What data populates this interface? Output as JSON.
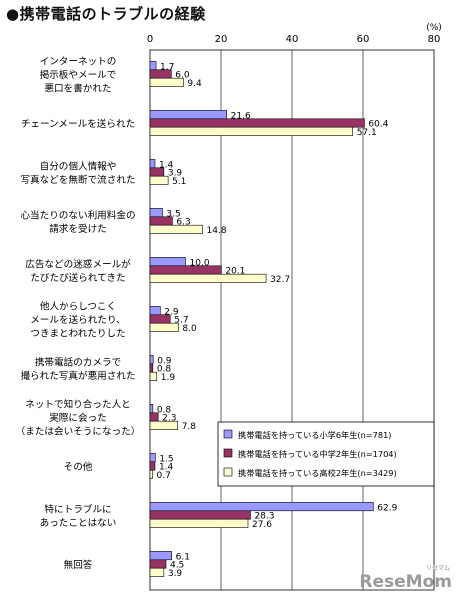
{
  "title": "●携帯電話のトラブルの経験",
  "watermark": "ReseMom",
  "watermark_sub": "リセマム",
  "chart_data": {
    "type": "bar",
    "orientation": "horizontal",
    "title": "携帯電話のトラブルの経験",
    "unit_label": "(%)",
    "xlim": [
      0,
      80
    ],
    "ticks": [
      0,
      20,
      40,
      60,
      80
    ],
    "grid": true,
    "legend_position": "right-middle",
    "categories": [
      [
        "インターネットの",
        "掲示板やメールで",
        "悪口を書かれた"
      ],
      [
        "チェーンメールを送られた"
      ],
      [
        "自分の個人情報や",
        "写真などを無断で流された"
      ],
      [
        "心当たりのない利用料金の",
        "請求を受けた"
      ],
      [
        "広告などの迷惑メールが",
        "たびたび送られてきた"
      ],
      [
        "他人からしつこく",
        "メールを送られたり、",
        "つきまとわれたりした"
      ],
      [
        "携帯電話のカメラで",
        "撮られた写真が悪用された"
      ],
      [
        "ネットで知り合った人と",
        "実際に会った",
        "（または会いそうになった）"
      ],
      [
        "その他"
      ],
      [
        "特にトラブルに",
        "あったことはない"
      ],
      [
        "無回答"
      ]
    ],
    "series": [
      {
        "name": "携帯電話を持っている小学6年生(n=781)",
        "color": "#9999ff",
        "values": [
          1.7,
          21.6,
          1.4,
          3.5,
          10.0,
          2.9,
          0.9,
          0.8,
          1.5,
          62.9,
          6.1
        ],
        "labels": [
          "1.7",
          "21.6",
          "1.4",
          "3.5",
          "10.0",
          "2.9",
          "0.9",
          "0.8",
          "1.5",
          "62.9",
          "6.1"
        ]
      },
      {
        "name": "携帯電話を持っている中学2年生(n=1704)",
        "color": "#993366",
        "values": [
          6.0,
          60.4,
          3.9,
          6.3,
          20.1,
          5.7,
          0.8,
          2.3,
          1.4,
          28.3,
          4.5
        ],
        "labels": [
          "6.0",
          "60.4",
          "3.9",
          "6.3",
          "20.1",
          "5.7",
          "0.8",
          "2.3",
          "1.4",
          "28.3",
          "4.5"
        ]
      },
      {
        "name": "携帯電話を持っている高校2年生(n=3429)",
        "color": "#ffffcc",
        "values": [
          9.4,
          57.1,
          5.1,
          14.8,
          32.7,
          8.0,
          1.9,
          7.8,
          0.7,
          27.6,
          3.9
        ],
        "labels": [
          "9.4",
          "57.1",
          "5.1",
          "14.8",
          "32.7",
          "8.0",
          "1.9",
          "7.8",
          "0.7",
          "27.6",
          "3.9"
        ]
      }
    ]
  }
}
